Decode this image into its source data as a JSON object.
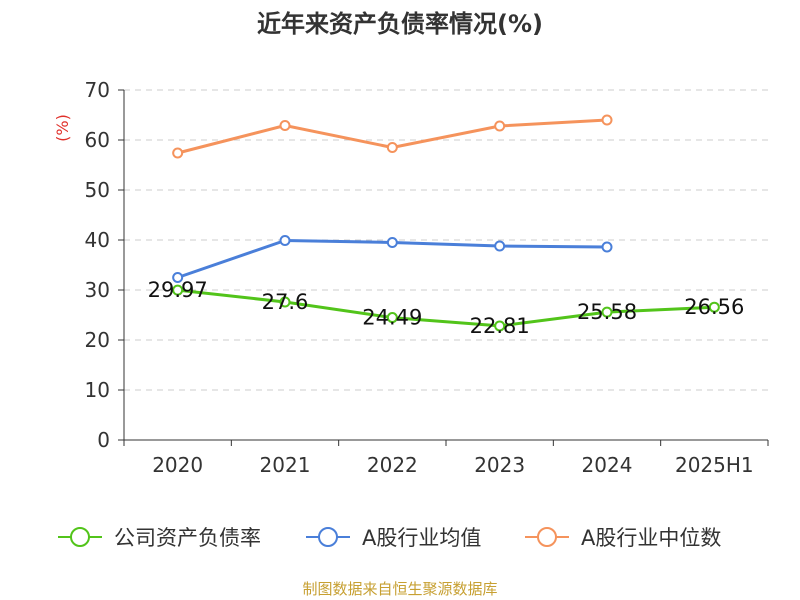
{
  "chart_data": {
    "type": "line",
    "title": "近年来资产负债率情况(%)",
    "unit_label": "(%)",
    "categories": [
      "2020",
      "2021",
      "2022",
      "2023",
      "2024",
      "2025H1"
    ],
    "ylim": [
      0,
      70
    ],
    "yticks": [
      0,
      10,
      20,
      30,
      40,
      50,
      60,
      70
    ],
    "grid": true,
    "legend_position": "bottom",
    "series": [
      {
        "name": "公司资产负债率",
        "color": "#52c41a",
        "values": [
          29.97,
          27.6,
          24.49,
          22.81,
          25.58,
          26.56
        ],
        "labels": [
          "29.97",
          "27.6",
          "24.49",
          "22.81",
          "25.58",
          "26.56"
        ]
      },
      {
        "name": "A股行业均值",
        "color": "#4a7fd9",
        "values": [
          32.5,
          39.9,
          39.5,
          38.8,
          38.6,
          null
        ]
      },
      {
        "name": "A股行业中位数",
        "color": "#f5935c",
        "values": [
          57.4,
          62.9,
          58.5,
          62.8,
          64.0,
          null
        ]
      }
    ]
  },
  "footer": {
    "source": "制图数据来自恒生聚源数据库"
  }
}
